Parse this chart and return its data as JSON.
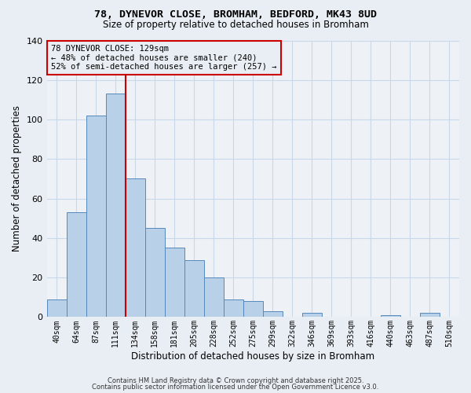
{
  "title": "78, DYNEVOR CLOSE, BROMHAM, BEDFORD, MK43 8UD",
  "subtitle": "Size of property relative to detached houses in Bromham",
  "xlabel": "Distribution of detached houses by size in Bromham",
  "ylabel": "Number of detached properties",
  "bin_labels": [
    "40sqm",
    "64sqm",
    "87sqm",
    "111sqm",
    "134sqm",
    "158sqm",
    "181sqm",
    "205sqm",
    "228sqm",
    "252sqm",
    "275sqm",
    "299sqm",
    "322sqm",
    "346sqm",
    "369sqm",
    "393sqm",
    "416sqm",
    "440sqm",
    "463sqm",
    "487sqm",
    "510sqm"
  ],
  "bar_values": [
    9,
    53,
    102,
    113,
    70,
    45,
    35,
    29,
    20,
    9,
    8,
    3,
    0,
    2,
    0,
    0,
    0,
    1,
    0,
    2,
    0
  ],
  "bar_color": "#b8d0e8",
  "bar_edgecolor": "#5588bb",
  "vline_color": "#cc0000",
  "annotation_text": "78 DYNEVOR CLOSE: 129sqm\n← 48% of detached houses are smaller (240)\n52% of semi-detached houses are larger (257) →",
  "annotation_box_edgecolor": "#cc0000",
  "ylim": [
    0,
    140
  ],
  "yticks": [
    0,
    20,
    40,
    60,
    80,
    100,
    120,
    140
  ],
  "grid_color": "#c8d8e8",
  "background_color": "#e8eef4",
  "plot_bg_color": "#eef2f7",
  "footer1": "Contains HM Land Registry data © Crown copyright and database right 2025.",
  "footer2": "Contains public sector information licensed under the Open Government Licence v3.0."
}
